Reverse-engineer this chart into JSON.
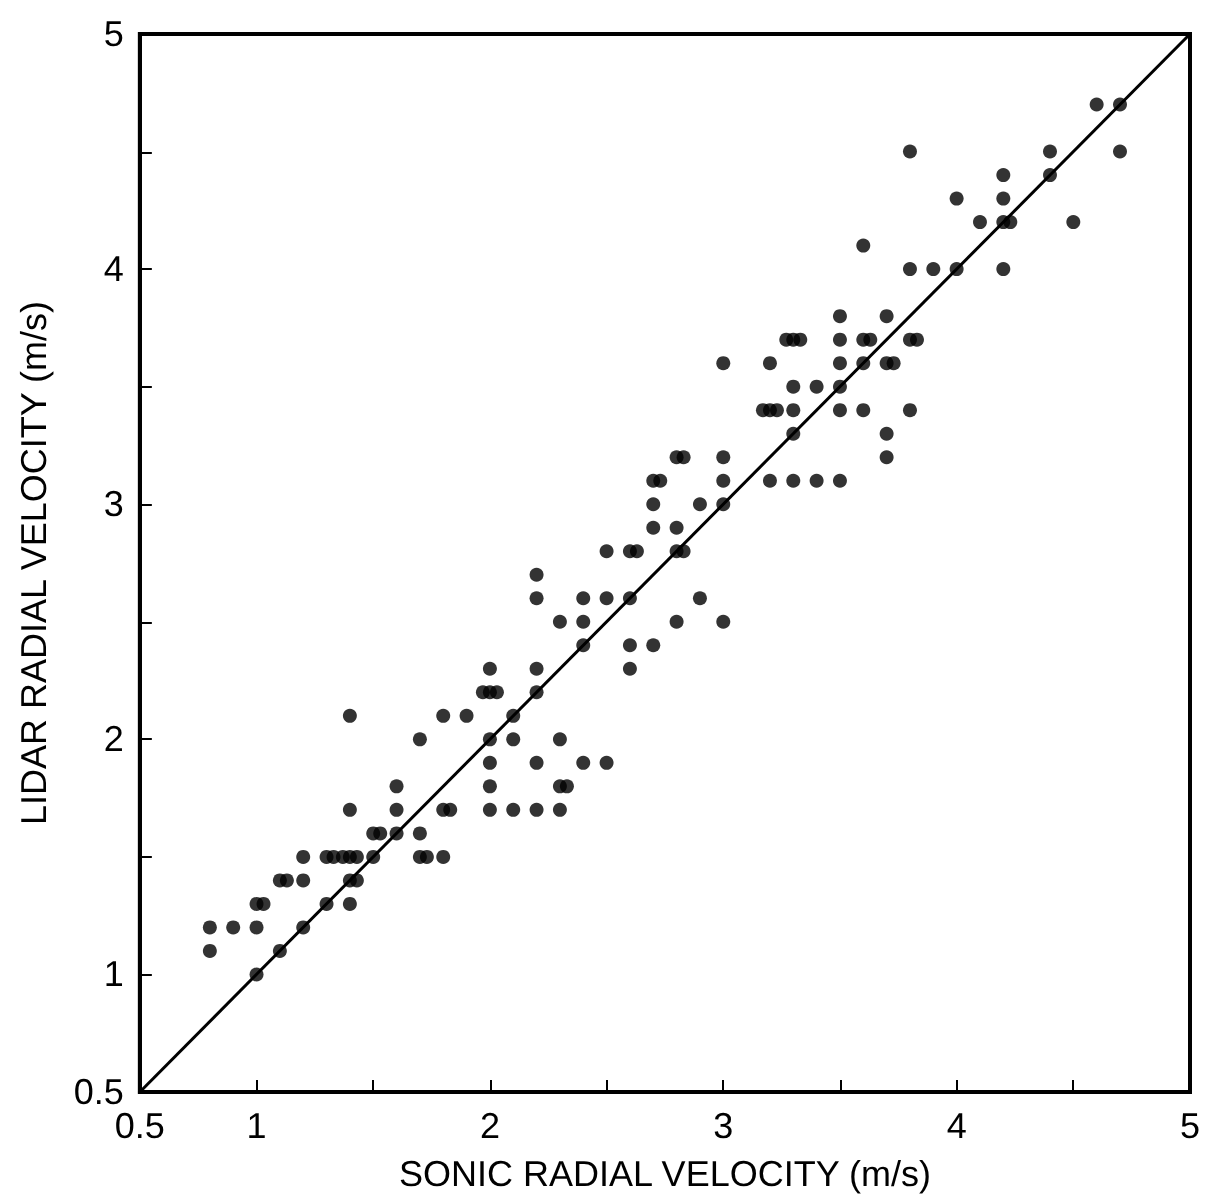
{
  "chart_data": {
    "type": "scatter",
    "xlabel": "SONIC RADIAL VELOCITY (m/s)",
    "ylabel": "LIDAR RADIAL VELOCITY (m/s)",
    "xlim": [
      0.5,
      5
    ],
    "ylim": [
      0.5,
      5
    ],
    "xticks": [
      0.5,
      1,
      {
        "value": 1.5,
        "label": null
      },
      2,
      {
        "value": 2.5,
        "label": null
      },
      3,
      {
        "value": 3.5,
        "label": null
      },
      4,
      {
        "value": 4.5,
        "label": null
      },
      5
    ],
    "yticks": [
      0.5,
      1,
      {
        "value": 1.5,
        "label": null
      },
      2,
      {
        "value": 2.5,
        "label": null
      },
      3,
      {
        "value": 3.5,
        "label": null
      },
      4,
      {
        "value": 4.5,
        "label": null
      },
      5
    ],
    "grid": false,
    "marker": "circle",
    "series": [
      {
        "color": "#000000",
        "x": [
          0.8,
          0.8,
          0.9,
          1.0,
          1.03,
          1.0,
          1.0,
          1.1,
          1.1,
          1.13,
          1.2,
          1.2,
          1.2,
          1.3,
          1.3,
          1.33,
          1.37,
          1.4,
          1.4,
          1.43,
          1.4,
          1.4,
          1.4,
          1.43,
          1.5,
          1.53,
          1.5,
          1.6,
          1.6,
          1.6,
          1.7,
          1.7,
          1.7,
          1.73,
          1.8,
          1.8,
          1.83,
          1.8,
          1.9,
          1.97,
          2.0,
          2.03,
          2.0,
          2.0,
          2.0,
          2.0,
          2.0,
          2.1,
          2.1,
          2.1,
          2.2,
          2.2,
          2.2,
          2.2,
          2.2,
          2.3,
          2.3,
          2.33,
          2.3,
          2.4,
          2.4,
          2.4,
          2.5,
          2.6,
          2.6,
          2.6,
          2.7,
          2.8,
          2.9
        ],
        "values": [
          1.2,
          1.1,
          1.2,
          1.3,
          1.3,
          1.2,
          1.0,
          1.1,
          1.4,
          1.4,
          1.5,
          1.4,
          1.2,
          1.3,
          1.5,
          1.5,
          1.5,
          1.5,
          1.4,
          1.4,
          1.7,
          2.1,
          1.3,
          1.5,
          1.6,
          1.6,
          1.5,
          1.6,
          1.7,
          1.8,
          2.0,
          1.6,
          1.5,
          1.5,
          1.5,
          1.7,
          1.7,
          2.1,
          2.1,
          2.2,
          2.2,
          2.2,
          2.3,
          2.0,
          1.9,
          1.8,
          1.7,
          2.1,
          2.0,
          1.7,
          2.7,
          2.3,
          2.2,
          1.9,
          1.7,
          2.0,
          1.8,
          1.8,
          1.7,
          2.6,
          2.4,
          1.9,
          1.9,
          2.6,
          2.4,
          2.3,
          2.4,
          2.5,
          2.6
        ]
      },
      {
        "color": "#000000",
        "x": [
          2.2,
          2.3,
          2.4,
          2.5,
          2.5,
          2.6,
          2.63,
          2.7,
          2.7,
          2.7,
          2.73,
          2.8,
          2.83,
          2.8,
          2.8,
          2.83,
          2.9,
          3.0,
          3.0,
          3.0,
          3.0,
          3.0,
          3.2,
          3.17,
          3.2,
          3.23,
          3.2,
          3.27,
          3.3,
          3.33,
          3.3,
          3.3,
          3.3,
          3.3,
          3.4,
          3.4,
          3.5,
          3.5,
          3.5,
          3.5,
          3.5,
          3.5,
          3.6,
          3.6,
          3.63,
          3.6,
          3.6,
          3.7,
          3.7,
          3.73,
          3.7,
          3.7,
          3.8,
          3.8,
          3.8,
          3.83,
          3.8,
          3.9,
          4.0,
          4.0,
          4.1,
          4.2,
          4.2,
          4.2,
          4.23,
          4.2,
          4.4,
          4.4,
          4.5,
          4.6,
          4.7,
          4.7
        ],
        "values": [
          2.6,
          2.5,
          2.5,
          2.6,
          2.8,
          2.8,
          2.8,
          3.0,
          2.9,
          3.1,
          3.1,
          3.2,
          3.2,
          2.9,
          2.8,
          2.8,
          3.0,
          3.6,
          3.2,
          3.1,
          3.0,
          2.5,
          3.6,
          3.4,
          3.4,
          3.4,
          3.1,
          3.7,
          3.7,
          3.7,
          3.5,
          3.4,
          3.3,
          3.1,
          3.5,
          3.1,
          3.8,
          3.7,
          3.6,
          3.5,
          3.4,
          3.1,
          4.1,
          3.7,
          3.7,
          3.6,
          3.4,
          3.8,
          3.6,
          3.6,
          3.3,
          3.2,
          4.5,
          4.0,
          3.7,
          3.7,
          3.4,
          4.0,
          4.3,
          4.0,
          4.2,
          4.4,
          4.3,
          4.2,
          4.2,
          4.0,
          4.5,
          4.4,
          4.2,
          4.7,
          4.7,
          4.5
        ]
      },
      {
        "type": "line",
        "marker": "none",
        "color": "#000000",
        "x": [
          0.5,
          5
        ],
        "values": [
          0.5,
          5
        ]
      }
    ]
  }
}
